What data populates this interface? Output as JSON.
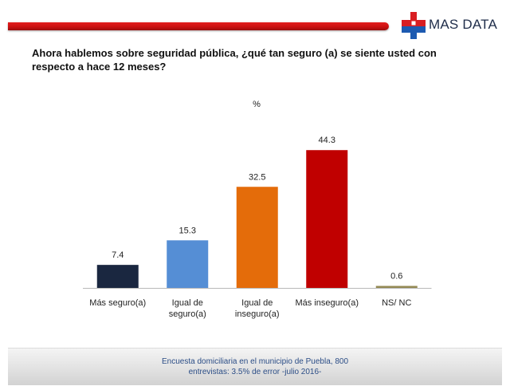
{
  "logo": {
    "text": "MAS DATA",
    "colors": {
      "red": "#d91e22",
      "blue": "#1d5ab1"
    },
    "icon": "cross-logo-icon"
  },
  "question": "Ahora hablemos sobre seguridad pública, ¿qué tan seguro (a) se siente usted con respecto a hace 12 meses?",
  "chart_data": {
    "type": "bar",
    "title": "%",
    "categories": [
      "Más seguro(a)",
      "Igual de seguro(a)",
      "Igual de inseguro(a)",
      "Más inseguro(a)",
      "NS/ NC"
    ],
    "category_lines": [
      [
        "Más seguro(a)"
      ],
      [
        "Igual de",
        "seguro(a)"
      ],
      [
        "Igual de",
        "inseguro(a)"
      ],
      [
        "Más inseguro(a)"
      ],
      [
        "NS/ NC"
      ]
    ],
    "values": [
      7.4,
      15.3,
      32.5,
      44.3,
      0.6
    ],
    "value_labels": [
      "7.4",
      "15.3",
      "32.5",
      "44.3",
      "0.6"
    ],
    "colors": [
      "#1a2740",
      "#558ed5",
      "#e46c0a",
      "#c00000",
      "#948a54"
    ],
    "ylim": [
      0,
      50
    ],
    "grid": false,
    "legend": "none"
  },
  "footer": {
    "line1": "Encuesta domiciliaria en el municipio de Puebla, 800",
    "line2": "entrevistas: 3.5% de error -julio 2016-"
  }
}
